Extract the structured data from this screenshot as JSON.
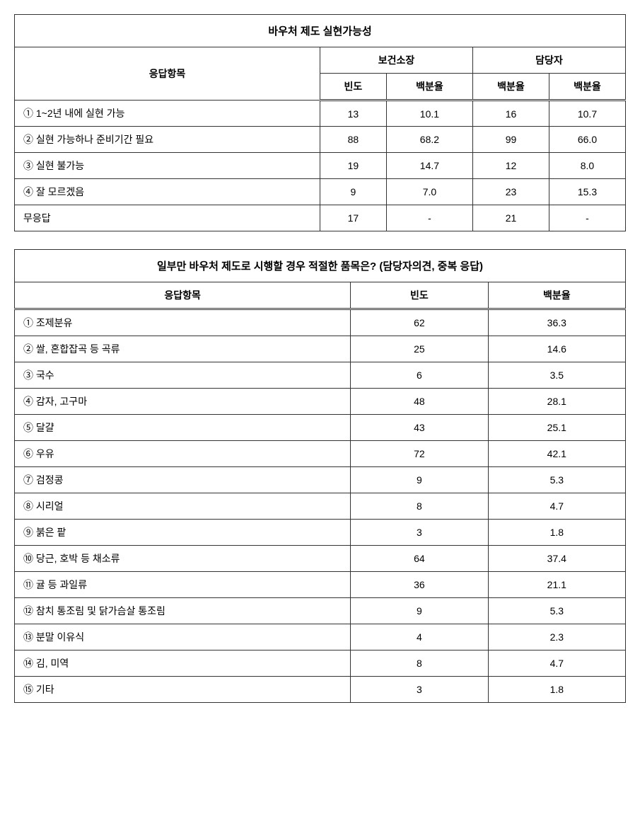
{
  "table1": {
    "title": "바우처 제도 실현가능성",
    "headerRow1": {
      "col1": "응답항목",
      "col2": "보건소장",
      "col3": "담당자"
    },
    "headerRow2": {
      "col1": "빈도",
      "col2": "백분율",
      "col3": "백분율",
      "col4": "백분율"
    },
    "rows": [
      {
        "label": "① 1~2년 내에 실현 가능",
        "c1": "13",
        "c2": "10.1",
        "c3": "16",
        "c4": "10.7"
      },
      {
        "label": "② 실현 가능하나 준비기간 필요",
        "c1": "88",
        "c2": "68.2",
        "c3": "99",
        "c4": "66.0"
      },
      {
        "label": "③ 실현 불가능",
        "c1": "19",
        "c2": "14.7",
        "c3": "12",
        "c4": "8.0"
      },
      {
        "label": "④ 잘 모르겠음",
        "c1": "9",
        "c2": "7.0",
        "c3": "23",
        "c4": "15.3"
      },
      {
        "label": "무응답",
        "c1": "17",
        "c2": "-",
        "c3": "21",
        "c4": "-"
      }
    ]
  },
  "table2": {
    "title": "일부만 바우처 제도로 시행할 경우 적절한 품목은? (담당자의견, 중복 응답)",
    "headerRow": {
      "col1": "응답항목",
      "col2": "빈도",
      "col3": "백분율"
    },
    "rows": [
      {
        "label": "① 조제분유",
        "c1": "62",
        "c2": "36.3"
      },
      {
        "label": "② 쌀, 혼합잡곡 등 곡류",
        "c1": "25",
        "c2": "14.6"
      },
      {
        "label": "③ 국수",
        "c1": "6",
        "c2": "3.5"
      },
      {
        "label": "④ 감자, 고구마",
        "c1": "48",
        "c2": "28.1"
      },
      {
        "label": "⑤ 달걀",
        "c1": "43",
        "c2": "25.1"
      },
      {
        "label": "⑥ 우유",
        "c1": "72",
        "c2": "42.1"
      },
      {
        "label": "⑦ 검정콩",
        "c1": "9",
        "c2": "5.3"
      },
      {
        "label": "⑧ 시리얼",
        "c1": "8",
        "c2": "4.7"
      },
      {
        "label": "⑨ 붉은 팥",
        "c1": "3",
        "c2": "1.8"
      },
      {
        "label": "⑩ 당근, 호박 등 채소류",
        "c1": "64",
        "c2": "37.4"
      },
      {
        "label": "⑪ 귤 등 과일류",
        "c1": "36",
        "c2": "21.1"
      },
      {
        "label": "⑫ 참치 통조림 및 닭가슴살 통조림",
        "c1": "9",
        "c2": "5.3"
      },
      {
        "label": "⑬ 분말 이유식",
        "c1": "4",
        "c2": "2.3"
      },
      {
        "label": "⑭ 김, 미역",
        "c1": "8",
        "c2": "4.7"
      },
      {
        "label": "⑮ 기타",
        "c1": "3",
        "c2": "1.8"
      }
    ]
  }
}
